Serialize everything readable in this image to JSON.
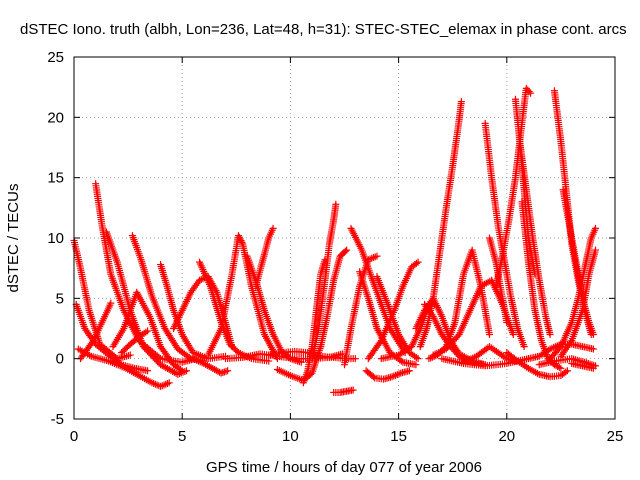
{
  "chart_data": {
    "type": "scatter",
    "title": "dSTEC Iono. truth (albh, Lon=236, Lat=48, h=31): STEC-STEC_elemax in phase cont. arcs",
    "xlabel": "GPS time / hours of day 077 of year 2006",
    "ylabel": "dSTEC  / TECUs",
    "xlim": [
      0,
      25
    ],
    "ylim": [
      -5,
      25
    ],
    "x_ticks": [
      "0",
      "5",
      "10",
      "15",
      "20",
      "25"
    ],
    "y_ticks": [
      "-5",
      "0",
      "5",
      "10",
      "15",
      "20",
      "25"
    ],
    "grid": true,
    "marker": "+",
    "color": "#ff0000",
    "series": [
      {
        "x": [
          0.0,
          0.3,
          0.7,
          1.2,
          2.0,
          2.6
        ],
        "y": [
          9.8,
          7.5,
          4.0,
          1.2,
          0.0,
          0.3
        ]
      },
      {
        "x": [
          0.1,
          0.5,
          1.0,
          1.6,
          2.2,
          2.8,
          3.4
        ],
        "y": [
          4.5,
          2.5,
          1.2,
          0.3,
          -0.5,
          -0.8,
          -1.0
        ]
      },
      {
        "x": [
          0.2,
          0.8,
          1.6,
          2.4,
          3.0,
          3.6,
          4.0,
          4.4
        ],
        "y": [
          0.8,
          0.2,
          -0.2,
          -0.8,
          -1.4,
          -2.0,
          -2.3,
          -2.0
        ]
      },
      {
        "x": [
          0.3,
          0.9,
          1.5,
          1.7
        ],
        "y": [
          0.0,
          1.5,
          3.8,
          4.6
        ]
      },
      {
        "x": [
          1.0,
          1.3,
          1.7,
          2.3,
          3.0,
          4.0,
          5.0,
          5.6
        ],
        "y": [
          14.5,
          11.0,
          7.0,
          4.0,
          1.5,
          0.0,
          -0.3,
          0.0
        ]
      },
      {
        "x": [
          1.5,
          2.0,
          2.6,
          3.2,
          4.0,
          4.8,
          5.2
        ],
        "y": [
          10.5,
          8.0,
          4.0,
          1.0,
          -0.5,
          -1.3,
          -1.0
        ]
      },
      {
        "x": [
          1.8,
          2.3,
          2.9,
          3.5,
          4.0,
          4.6,
          5.0
        ],
        "y": [
          1.0,
          2.5,
          5.5,
          3.5,
          1.0,
          -0.5,
          -1.0
        ]
      },
      {
        "x": [
          2.2,
          2.6,
          3.0,
          3.4
        ],
        "y": [
          0.5,
          1.2,
          1.8,
          2.3
        ]
      },
      {
        "x": [
          2.7,
          3.1,
          3.6,
          4.2,
          4.8,
          5.4,
          6.0
        ],
        "y": [
          10.2,
          8.2,
          5.2,
          2.5,
          0.8,
          0.0,
          -0.2
        ]
      },
      {
        "x": [
          4.0,
          4.3,
          4.6,
          5.0,
          5.5,
          6.2,
          7.0
        ],
        "y": [
          7.8,
          6.0,
          4.0,
          2.0,
          0.5,
          0.0,
          0.2
        ]
      },
      {
        "x": [
          4.6,
          5.0,
          5.4,
          5.8,
          6.2,
          6.6,
          7.0,
          7.3
        ],
        "y": [
          2.5,
          4.0,
          5.5,
          6.5,
          6.8,
          5.5,
          3.0,
          1.0
        ]
      },
      {
        "x": [
          5.5,
          6.0,
          6.5,
          6.8,
          7.1
        ],
        "y": [
          0.0,
          -0.4,
          -0.9,
          -1.2,
          -1.0
        ]
      },
      {
        "x": [
          5.8,
          6.3,
          6.8,
          7.2,
          7.6,
          8.2,
          9.0
        ],
        "y": [
          8.0,
          6.0,
          3.0,
          1.2,
          0.5,
          0.0,
          -0.2
        ]
      },
      {
        "x": [
          6.2,
          6.8,
          7.3,
          7.6,
          7.8,
          8.2,
          8.8,
          9.4
        ],
        "y": [
          0.3,
          2.5,
          7.0,
          10.2,
          9.5,
          6.0,
          2.0,
          0.0
        ]
      },
      {
        "x": [
          8.0,
          8.4,
          8.8,
          9.2,
          9.6,
          10.0,
          10.5
        ],
        "y": [
          8.5,
          6.5,
          4.0,
          2.0,
          0.6,
          0.0,
          -0.3
        ]
      },
      {
        "x": [
          8.4,
          8.7,
          9.0,
          9.2
        ],
        "y": [
          6.0,
          8.0,
          10.0,
          10.8
        ]
      },
      {
        "x": [
          7.0,
          7.8,
          8.6,
          9.4,
          10.2,
          11.0,
          11.8,
          12.4
        ],
        "y": [
          0.0,
          0.1,
          0.4,
          0.2,
          0.0,
          0.0,
          0.1,
          0.4
        ]
      },
      {
        "x": [
          9.0,
          9.6,
          10.2,
          10.8,
          11.4,
          12.0,
          12.6,
          13.0
        ],
        "y": [
          0.3,
          0.5,
          0.6,
          0.5,
          0.2,
          0.1,
          0.0,
          0.0
        ]
      },
      {
        "x": [
          9.4,
          10.0,
          10.6,
          11.0,
          11.4
        ],
        "y": [
          -0.9,
          -1.4,
          -1.8,
          -1.2,
          1.0
        ]
      },
      {
        "x": [
          10.6,
          10.8,
          11.0,
          11.2,
          11.4,
          11.6
        ],
        "y": [
          -2.0,
          -1.0,
          1.0,
          4.0,
          7.0,
          8.2
        ]
      },
      {
        "x": [
          11.0,
          11.3,
          11.6,
          11.8,
          12.0,
          12.1
        ],
        "y": [
          0.0,
          2.5,
          6.5,
          9.5,
          11.5,
          12.8
        ]
      },
      {
        "x": [
          11.4,
          11.7,
          12.0,
          12.3,
          12.6
        ],
        "y": [
          1.0,
          3.5,
          6.5,
          8.5,
          9.0
        ]
      },
      {
        "x": [
          12.0,
          12.3,
          12.6,
          12.9
        ],
        "y": [
          -2.8,
          -2.8,
          -2.7,
          -2.6
        ]
      },
      {
        "x": [
          12.5,
          12.8,
          13.2,
          13.6,
          14.0
        ],
        "y": [
          -0.5,
          2.5,
          6.0,
          8.2,
          8.5
        ]
      },
      {
        "x": [
          12.8,
          13.3,
          13.9,
          14.6,
          15.3
        ],
        "y": [
          10.8,
          9.0,
          6.0,
          2.5,
          0.5
        ]
      },
      {
        "x": [
          13.2,
          13.6,
          14.0,
          14.6,
          15.2,
          15.8
        ],
        "y": [
          7.2,
          5.0,
          2.5,
          0.5,
          -0.3,
          -0.5
        ]
      },
      {
        "x": [
          13.5,
          13.9,
          14.3,
          14.7,
          15.1,
          15.5
        ],
        "y": [
          -1.0,
          -1.6,
          -1.7,
          -1.5,
          -1.2,
          -1.0
        ]
      },
      {
        "x": [
          14.0,
          14.5,
          15.0,
          15.5,
          15.9
        ],
        "y": [
          6.8,
          4.5,
          2.0,
          0.5,
          0.0
        ]
      },
      {
        "x": [
          13.6,
          14.2,
          14.8,
          15.2,
          15.6,
          15.9
        ],
        "y": [
          0.0,
          1.5,
          4.0,
          6.0,
          7.6,
          8.0
        ]
      },
      {
        "x": [
          14.2,
          15.0,
          15.6,
          16.0,
          16.3
        ],
        "y": [
          0.0,
          0.3,
          1.0,
          2.5,
          4.0
        ]
      },
      {
        "x": [
          16.0,
          16.3,
          16.6,
          16.8,
          17.0,
          17.2,
          17.5,
          17.8,
          17.9
        ],
        "y": [
          1.0,
          2.5,
          5.0,
          7.5,
          10.0,
          12.5,
          16.0,
          19.8,
          21.3
        ]
      },
      {
        "x": [
          15.8,
          16.2,
          16.6,
          17.0,
          17.4,
          17.8,
          18.2,
          18.6,
          19.0
        ],
        "y": [
          2.5,
          4.0,
          5.0,
          3.5,
          1.5,
          0.4,
          0.0,
          -0.3,
          -0.5
        ]
      },
      {
        "x": [
          16.2,
          16.6,
          17.0,
          17.4,
          17.8,
          18.2,
          18.6,
          19.0
        ],
        "y": [
          4.5,
          3.5,
          2.0,
          1.0,
          0.2,
          -0.2,
          -0.4,
          -0.5
        ]
      },
      {
        "x": [
          16.4,
          16.8,
          17.2,
          17.6,
          18.0,
          18.4,
          18.8,
          19.2
        ],
        "y": [
          0.0,
          0.3,
          1.0,
          3.0,
          7.0,
          9.0,
          6.0,
          2.0
        ]
      },
      {
        "x": [
          16.6,
          17.2,
          17.8,
          18.3,
          18.8,
          19.3,
          19.8,
          20.3
        ],
        "y": [
          0.3,
          0.8,
          2.0,
          4.0,
          6.0,
          6.5,
          4.5,
          2.0
        ]
      },
      {
        "x": [
          18.0,
          18.6,
          19.2,
          19.6,
          20.0,
          20.4
        ],
        "y": [
          -0.3,
          0.2,
          1.0,
          0.5,
          0.0,
          -0.2
        ]
      },
      {
        "x": [
          19.0,
          19.3,
          19.6,
          19.9,
          20.2,
          20.5,
          20.8
        ],
        "y": [
          19.5,
          15.0,
          11.0,
          8.0,
          5.0,
          2.5,
          1.0
        ]
      },
      {
        "x": [
          19.2,
          19.5,
          19.8,
          20.0
        ],
        "y": [
          10.0,
          8.0,
          5.0,
          3.0
        ]
      },
      {
        "x": [
          19.5,
          19.8,
          20.1,
          20.4,
          20.6,
          20.8,
          20.9,
          21.1
        ],
        "y": [
          6.0,
          8.5,
          11.5,
          15.0,
          18.0,
          21.0,
          22.4,
          22.0
        ]
      },
      {
        "x": [
          20.4,
          20.6,
          20.8,
          21.0,
          21.3
        ],
        "y": [
          21.5,
          18.0,
          14.0,
          10.0,
          7.0
        ]
      },
      {
        "x": [
          20.6,
          20.9,
          21.2,
          21.5,
          21.8,
          22.0
        ],
        "y": [
          18.0,
          14.0,
          10.0,
          6.5,
          3.5,
          2.0
        ]
      },
      {
        "x": [
          20.7,
          21.0,
          21.3,
          21.6,
          21.9,
          22.2,
          22.5
        ],
        "y": [
          13.0,
          8.0,
          4.0,
          1.5,
          0.0,
          -0.5,
          -0.8
        ]
      },
      {
        "x": [
          20.0,
          20.5,
          21.0,
          21.5,
          22.0,
          22.5,
          22.8
        ],
        "y": [
          0.5,
          -0.2,
          -0.8,
          -1.3,
          -1.5,
          -1.4,
          -1.0
        ]
      },
      {
        "x": [
          21.0,
          21.5,
          22.0,
          22.5,
          23.0,
          23.5,
          24.0
        ],
        "y": [
          0.0,
          0.2,
          0.8,
          1.2,
          1.2,
          1.0,
          0.8
        ]
      },
      {
        "x": [
          22.2,
          22.5,
          22.8,
          23.0,
          23.3,
          23.6,
          23.9
        ],
        "y": [
          22.2,
          18.0,
          13.0,
          9.5,
          6.5,
          4.0,
          2.0
        ]
      },
      {
        "x": [
          22.6,
          22.9,
          23.2,
          23.5,
          23.8,
          24.0
        ],
        "y": [
          14.0,
          11.0,
          8.0,
          5.0,
          3.0,
          2.0
        ]
      },
      {
        "x": [
          22.0,
          22.5,
          23.0,
          23.3,
          23.6,
          23.9,
          24.1
        ],
        "y": [
          0.0,
          1.0,
          3.0,
          5.0,
          7.5,
          10.0,
          10.8
        ]
      },
      {
        "x": [
          22.5,
          23.0,
          23.5,
          23.8,
          24.1
        ],
        "y": [
          0.2,
          1.5,
          4.0,
          7.0,
          9.0
        ]
      },
      {
        "x": [
          21.5,
          22.2,
          23.0,
          23.6,
          24.1
        ],
        "y": [
          -0.5,
          -0.2,
          0.0,
          -0.3,
          -0.6
        ]
      },
      {
        "x": [
          23.0,
          23.5,
          24.0
        ],
        "y": [
          -0.4,
          -0.6,
          -0.8
        ]
      },
      {
        "x": [
          17.0,
          18.0,
          19.0,
          20.0,
          21.0
        ],
        "y": [
          0.0,
          -0.4,
          -0.6,
          -0.4,
          0.0
        ]
      }
    ]
  }
}
